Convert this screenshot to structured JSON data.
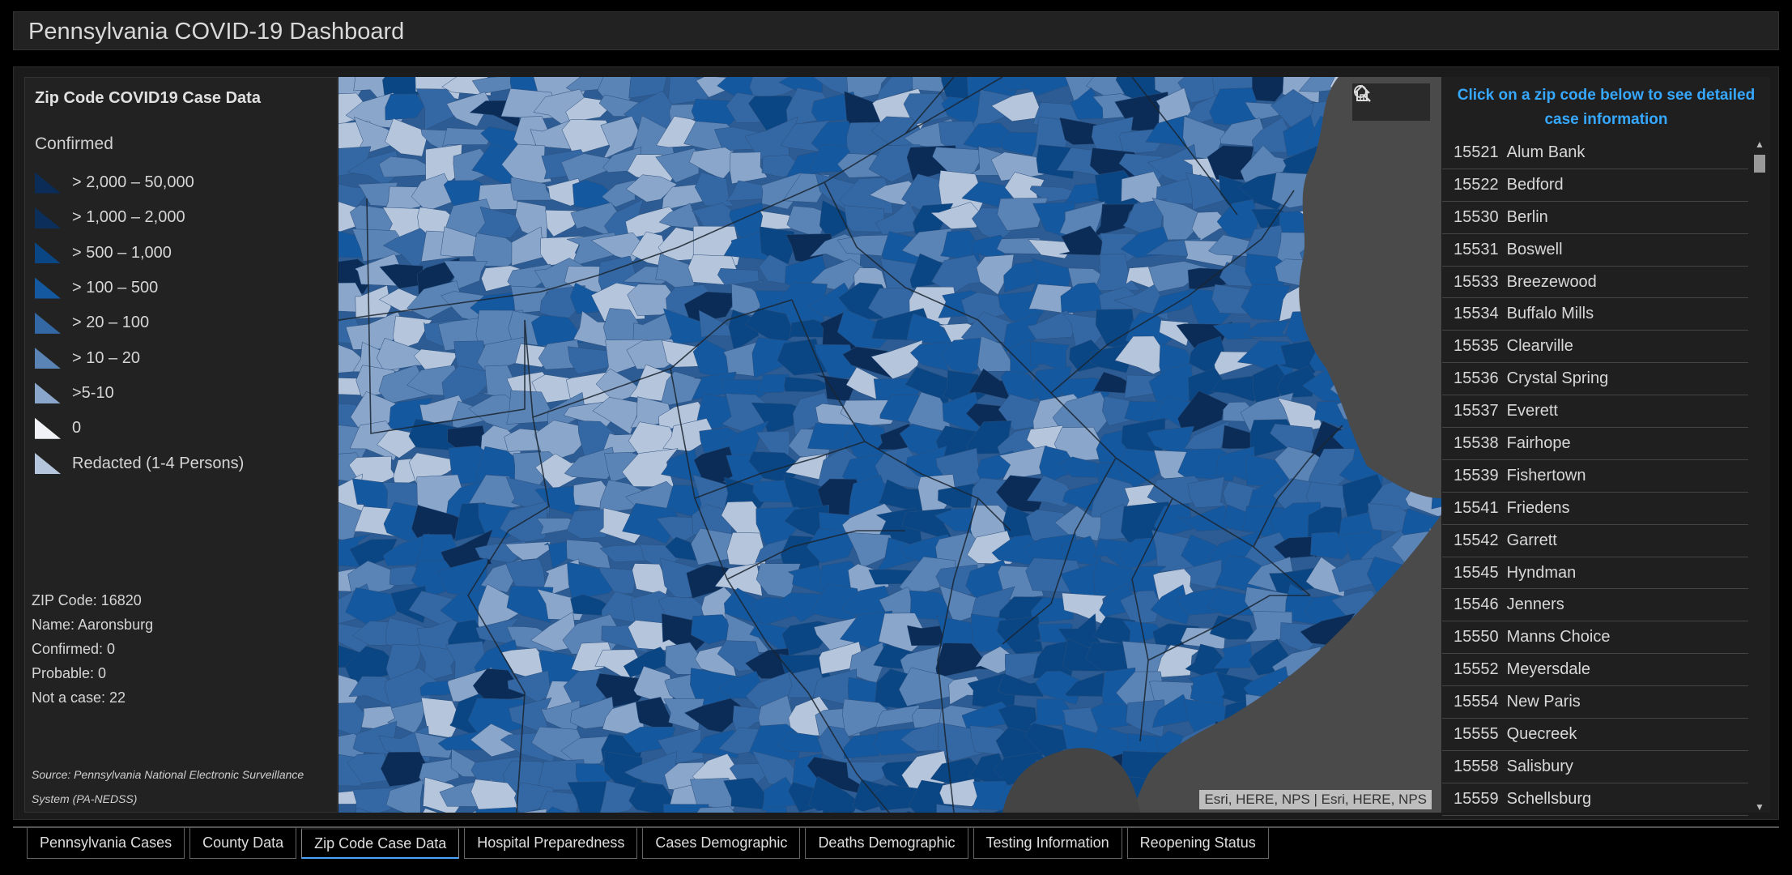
{
  "header": {
    "title": "Pennsylvania COVID-19 Dashboard"
  },
  "legend": {
    "title": "Zip Code COVID19 Case Data",
    "subtitle": "Confirmed",
    "items": [
      {
        "label": "> 2,000 – 50,000",
        "color": "#0b2c57"
      },
      {
        "label": "> 1,000 – 2,000",
        "color": "#0c2e5a"
      },
      {
        "label": "> 500 – 1,000",
        "color": "#0a4683"
      },
      {
        "label": "> 100 – 500",
        "color": "#1458a0"
      },
      {
        "label": "> 20 – 100",
        "color": "#3468a5"
      },
      {
        "label": "> 10 – 20",
        "color": "#5a83b6"
      },
      {
        "label": ">5-10",
        "color": "#8aa6cb"
      },
      {
        "label": "0",
        "color": "#f0f2f6"
      },
      {
        "label": "Redacted (1-4 Persons)",
        "color": "#b5c5dc"
      }
    ]
  },
  "details": {
    "zip": "ZIP Code: 16820",
    "name": "Name: Aaronsburg",
    "confirmed": "Confirmed: 0",
    "probable": "Probable: 0",
    "not_case": "Not a case: 22"
  },
  "source": "Source: Pennsylvania National Electronic Surveillance System (PA-NEDSS)",
  "map": {
    "attribution": "Esri, HERE, NPS | Esri, HERE, NPS",
    "tools": [
      "search-icon",
      "home-icon"
    ]
  },
  "zip_panel": {
    "header": "Click on a zip code below to see detailed case information",
    "items": [
      {
        "code": "15521",
        "name": "Alum Bank"
      },
      {
        "code": "15522",
        "name": "Bedford"
      },
      {
        "code": "15530",
        "name": "Berlin"
      },
      {
        "code": "15531",
        "name": "Boswell"
      },
      {
        "code": "15533",
        "name": "Breezewood"
      },
      {
        "code": "15534",
        "name": "Buffalo Mills"
      },
      {
        "code": "15535",
        "name": "Clearville"
      },
      {
        "code": "15536",
        "name": "Crystal Spring"
      },
      {
        "code": "15537",
        "name": "Everett"
      },
      {
        "code": "15538",
        "name": "Fairhope"
      },
      {
        "code": "15539",
        "name": "Fishertown"
      },
      {
        "code": "15541",
        "name": "Friedens"
      },
      {
        "code": "15542",
        "name": "Garrett"
      },
      {
        "code": "15545",
        "name": "Hyndman"
      },
      {
        "code": "15546",
        "name": "Jenners"
      },
      {
        "code": "15550",
        "name": "Manns Choice"
      },
      {
        "code": "15552",
        "name": "Meyersdale"
      },
      {
        "code": "15554",
        "name": "New Paris"
      },
      {
        "code": "15555",
        "name": "Quecreek"
      },
      {
        "code": "15558",
        "name": "Salisbury"
      },
      {
        "code": "15559",
        "name": "Schellsburg"
      }
    ]
  },
  "tabs": [
    {
      "label": "Pennsylvania Cases",
      "active": false
    },
    {
      "label": "County Data",
      "active": false
    },
    {
      "label": "Zip Code Case Data",
      "active": true
    },
    {
      "label": "Hospital Preparedness",
      "active": false
    },
    {
      "label": "Cases Demographic",
      "active": false
    },
    {
      "label": "Deaths Demographic",
      "active": false
    },
    {
      "label": "Testing Information",
      "active": false
    },
    {
      "label": "Reopening Status",
      "active": false
    }
  ]
}
